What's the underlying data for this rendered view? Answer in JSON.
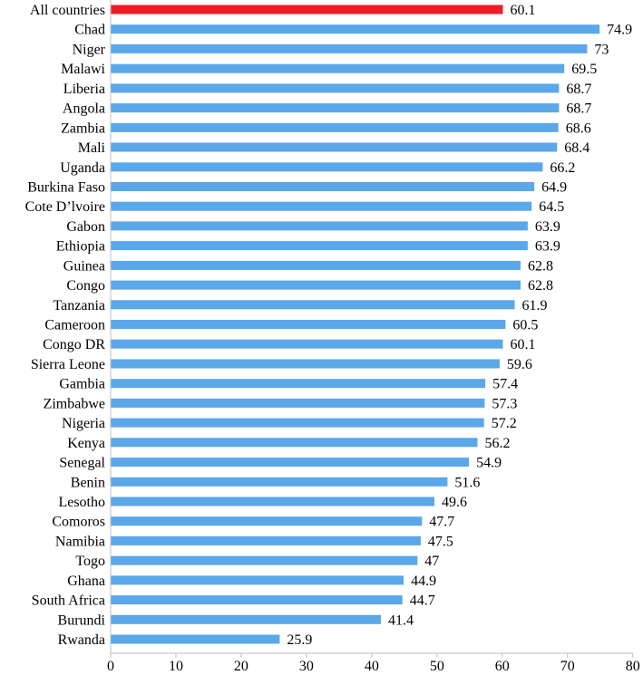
{
  "chart_data": {
    "type": "bar",
    "orientation": "horizontal",
    "title": "",
    "xlabel": "",
    "ylabel": "",
    "xlim": [
      0,
      80
    ],
    "xticks": [
      0,
      10,
      20,
      30,
      40,
      50,
      60,
      70,
      80
    ],
    "grid": false,
    "legend": "none",
    "colors": {
      "highlight": "#ee1c25",
      "bar": "#5aa7ea",
      "axis": "#bfbfbf"
    },
    "categories": [
      "All countries",
      "Chad",
      "Niger",
      "Malawi",
      "Liberia",
      "Angola",
      "Zambia",
      "Mali",
      "Uganda",
      "Burkina Faso",
      "Cote D’lvoire",
      "Gabon",
      "Ethiopia",
      "Guinea",
      "Congo",
      "Tanzania",
      "Cameroon",
      "Congo DR",
      "Sierra Leone",
      "Gambia",
      "Zimbabwe",
      "Nigeria",
      "Kenya",
      "Senegal",
      "Benin",
      "Lesotho",
      "Comoros",
      "Namibia",
      "Togo",
      "Ghana",
      "South Africa",
      "Burundi",
      "Rwanda"
    ],
    "values": [
      60.1,
      74.9,
      73,
      69.5,
      68.7,
      68.7,
      68.6,
      68.4,
      66.2,
      64.9,
      64.5,
      63.9,
      63.9,
      62.8,
      62.8,
      61.9,
      60.5,
      60.1,
      59.6,
      57.4,
      57.3,
      57.2,
      56.2,
      54.9,
      51.6,
      49.6,
      47.7,
      47.5,
      47,
      44.9,
      44.7,
      41.4,
      25.9
    ],
    "highlight_index": 0
  }
}
